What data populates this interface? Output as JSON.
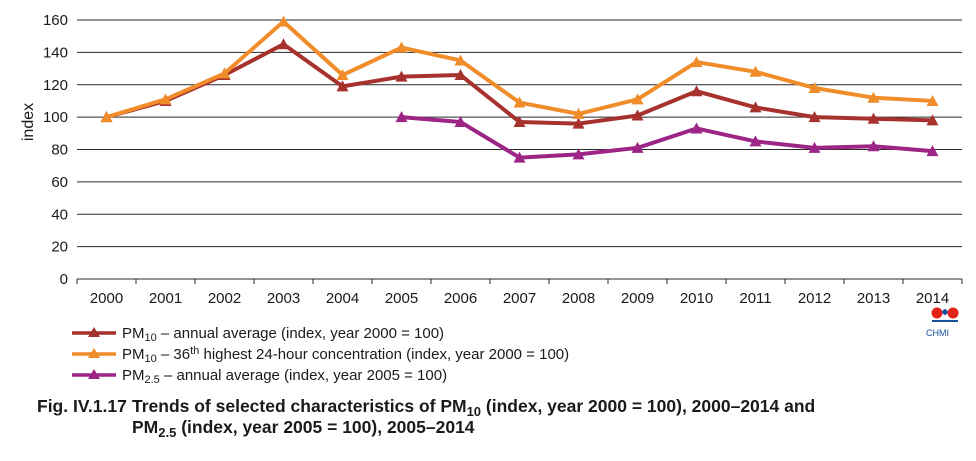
{
  "chart_data": {
    "type": "line",
    "ylabel": "index",
    "ylim": [
      0,
      160
    ],
    "yticks": [
      "160",
      "140",
      "120",
      "100",
      "80",
      "60",
      "40",
      "20",
      "0"
    ],
    "grid": true,
    "categories": [
      "2000",
      "2001",
      "2002",
      "2003",
      "2004",
      "2005",
      "2006",
      "2007",
      "2008",
      "2009",
      "2010",
      "2011",
      "2012",
      "2013",
      "2014"
    ],
    "series": [
      {
        "name": "PM10 – annual average (index, year 2000 = 100)",
        "color": "#a6312d",
        "values": [
          100,
          110,
          126,
          145,
          119,
          125,
          126,
          97,
          96,
          101,
          116,
          106,
          100,
          99,
          98
        ]
      },
      {
        "name": "PM10 – 36th highest 24-hour concentration (index, year 2000 = 100)",
        "color": "#f08c2a",
        "values": [
          100,
          111,
          127,
          159,
          126,
          143,
          135,
          109,
          102,
          111,
          134,
          128,
          118,
          112,
          110
        ]
      },
      {
        "name": "PM2.5 – annual average (index, year 2005 = 100)",
        "color": "#9c2586",
        "values": [
          null,
          null,
          null,
          null,
          null,
          100,
          97,
          75,
          77,
          81,
          93,
          85,
          81,
          82,
          79
        ]
      }
    ]
  },
  "legend": [
    {
      "pre": "PM",
      "sub": "10",
      "mid": " – annual average  (index, year 2000 = 100)",
      "sup": "",
      "post": ""
    },
    {
      "pre": "PM",
      "sub": "10",
      "mid": " – 36",
      "sup": "th",
      "post": " highest 24-hour concentration (index, year 2000 = 100)"
    },
    {
      "pre": "PM",
      "sub": "2.5",
      "mid": " – annual average  (index, year 2005 = 100)",
      "sup": "",
      "post": ""
    }
  ],
  "logo": {
    "text": "CHMI",
    "colors": [
      "#e2231a",
      "#1a4f9c"
    ]
  },
  "caption": {
    "number": "Fig. IV.1.17",
    "part1": "Trends of selected characteristics of PM",
    "sub1": "10",
    "part2": " (index, year 2000 = 100), 2000–2014 and",
    "line2_pre": "PM",
    "sub2": "2.5",
    "line2_post": " (index, year 2005 = 100), 2005–2014"
  }
}
